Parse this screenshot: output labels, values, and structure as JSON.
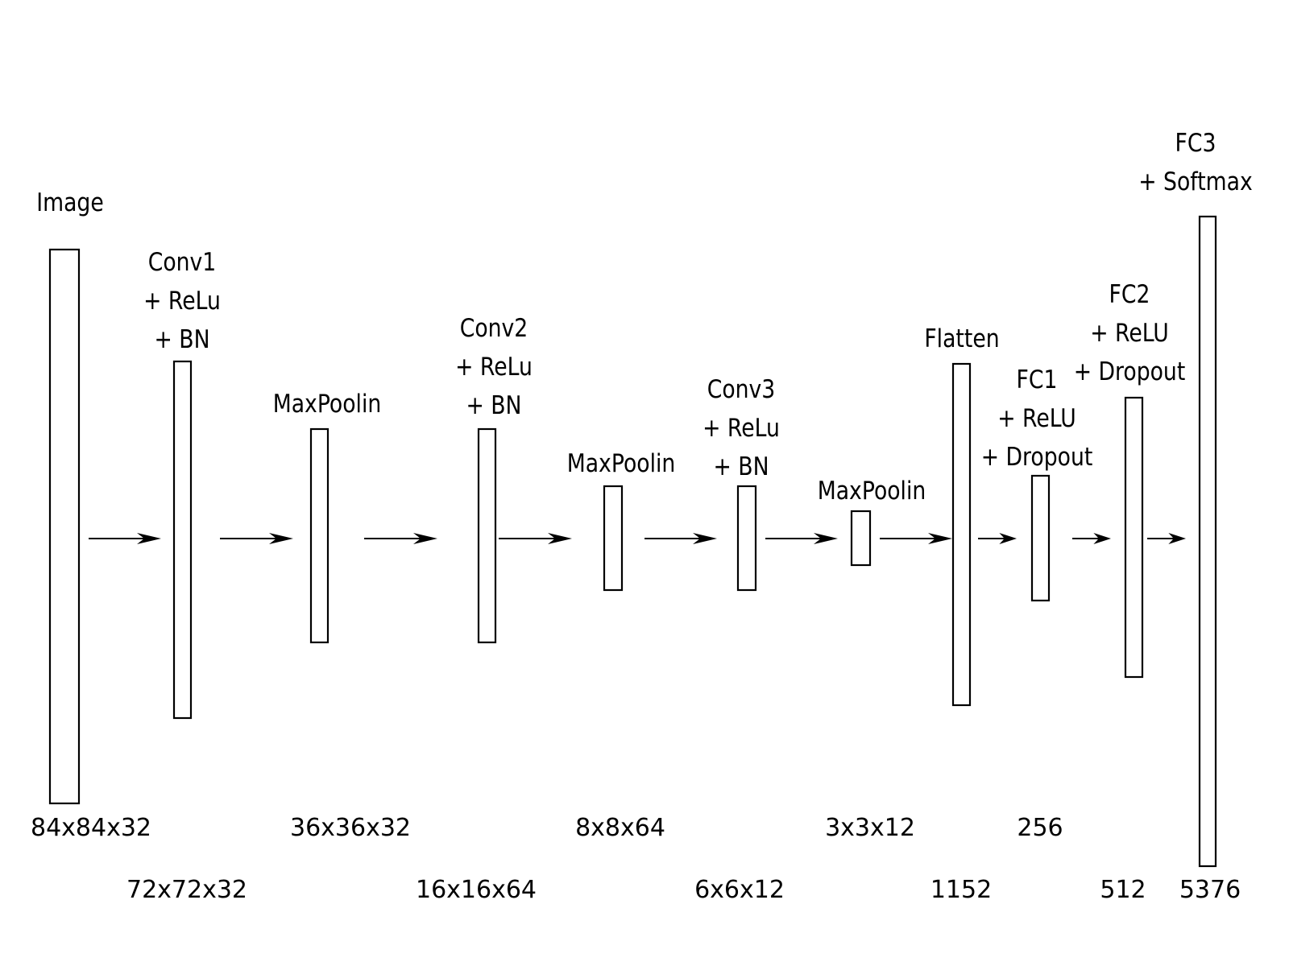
{
  "layers": [
    {
      "id": "image",
      "lines": [
        "Image"
      ],
      "dim": "84x84x32"
    },
    {
      "id": "conv1",
      "lines": [
        "Conv1",
        "+ ReLu",
        "+ BN"
      ],
      "dim": "72x72x32"
    },
    {
      "id": "maxpool1",
      "lines": [
        "MaxPoolin"
      ],
      "dim": "36x36x32"
    },
    {
      "id": "conv2",
      "lines": [
        "Conv2",
        "+ ReLu",
        "+ BN"
      ],
      "dim": "16x16x64"
    },
    {
      "id": "maxpool2",
      "lines": [
        "MaxPoolin"
      ],
      "dim": "8x8x64"
    },
    {
      "id": "conv3",
      "lines": [
        "Conv3",
        "+ ReLu",
        "+ BN"
      ],
      "dim": "6x6x12"
    },
    {
      "id": "maxpool3",
      "lines": [
        "MaxPoolin"
      ],
      "dim": "3x3x12"
    },
    {
      "id": "flatten",
      "lines": [
        "Flatten"
      ],
      "dim": "1152"
    },
    {
      "id": "fc1",
      "lines": [
        "FC1",
        "+ ReLU",
        "+ Dropout"
      ],
      "dim": "256"
    },
    {
      "id": "fc2",
      "lines": [
        "FC2",
        "+ ReLU",
        "+ Dropout"
      ],
      "dim": "512"
    },
    {
      "id": "fc3",
      "lines": [
        "FC3",
        "+ Softmax"
      ],
      "dim": "5376"
    }
  ],
  "colors": {
    "stroke": "#000000",
    "background": "#ffffff"
  }
}
